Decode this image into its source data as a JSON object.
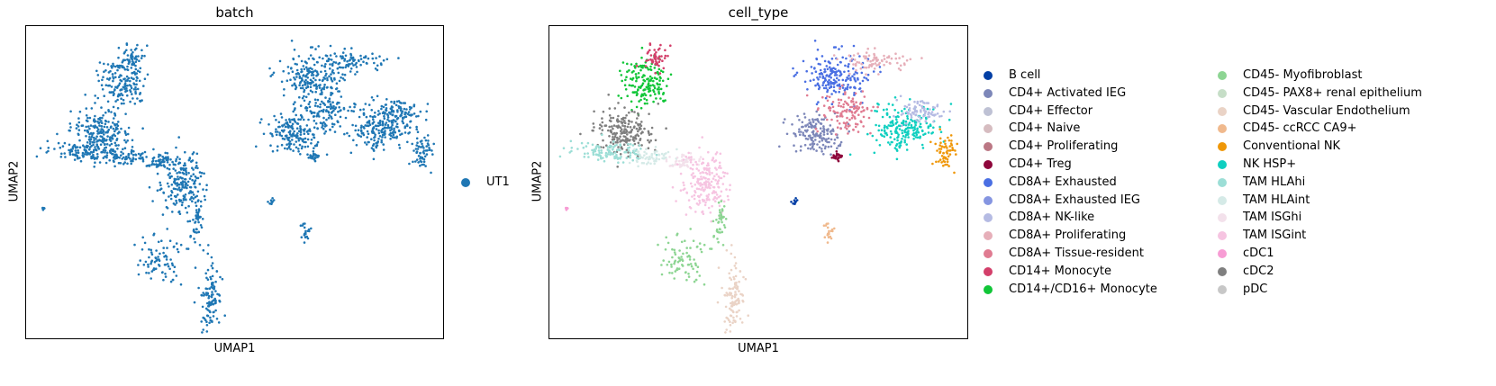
{
  "chart_data": [
    {
      "type": "scatter",
      "title": "batch",
      "xlabel": "UMAP1",
      "ylabel": "UMAP2",
      "legend_position": "right",
      "grid": false,
      "series": [
        {
          "name": "UT1",
          "color": "#1f77b4"
        }
      ]
    },
    {
      "type": "scatter",
      "title": "cell_type",
      "xlabel": "UMAP1",
      "ylabel": "UMAP2",
      "legend_position": "right (two columns)",
      "grid": false,
      "series": [
        {
          "name": "B cell",
          "color": "#023fa5"
        },
        {
          "name": "CD4+ Activated IEG",
          "color": "#7d87b9"
        },
        {
          "name": "CD4+ Effector",
          "color": "#bec1d4"
        },
        {
          "name": "CD4+ Naive",
          "color": "#d6bcc0"
        },
        {
          "name": "CD4+ Proliferating",
          "color": "#bb7784"
        },
        {
          "name": "CD4+ Treg",
          "color": "#8e063b"
        },
        {
          "name": "CD8A+ Exhausted",
          "color": "#4a6fe3"
        },
        {
          "name": "CD8A+ Exhausted IEG",
          "color": "#8595e1"
        },
        {
          "name": "CD8A+ NK-like",
          "color": "#b5bbe3"
        },
        {
          "name": "CD8A+ Proliferating",
          "color": "#e6afb9"
        },
        {
          "name": "CD8A+ Tissue-resident",
          "color": "#e07b91"
        },
        {
          "name": "CD14+ Monocyte",
          "color": "#d33f6a"
        },
        {
          "name": "CD14+/CD16+ Monocyte",
          "color": "#11c638"
        },
        {
          "name": "CD45- Myofibroblast",
          "color": "#8dd593"
        },
        {
          "name": "CD45- PAX8+ renal epithelium",
          "color": "#c6dec7"
        },
        {
          "name": "CD45- Vascular Endothelium",
          "color": "#ead3c6"
        },
        {
          "name": "CD45- ccRCC CA9+",
          "color": "#f0b98d"
        },
        {
          "name": "Conventional NK",
          "color": "#ef9708"
        },
        {
          "name": "NK HSP+",
          "color": "#0fcfc0"
        },
        {
          "name": "TAM HLAhi",
          "color": "#9cded6"
        },
        {
          "name": "TAM HLAint",
          "color": "#d5eae7"
        },
        {
          "name": "TAM ISGhi",
          "color": "#f3e1eb"
        },
        {
          "name": "TAM ISGint",
          "color": "#f6c4e1"
        },
        {
          "name": "cDC1",
          "color": "#f79cd4"
        },
        {
          "name": "cDC2",
          "color": "#7f7f7f"
        },
        {
          "name": "pDC",
          "color": "#c7c7c7"
        }
      ]
    }
  ]
}
